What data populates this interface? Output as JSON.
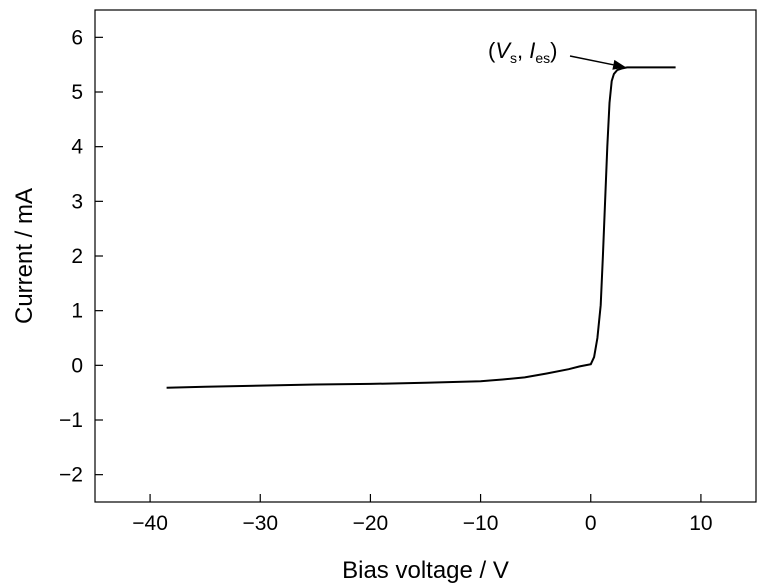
{
  "chart_data": {
    "type": "line",
    "xlabel": "Bias voltage / V",
    "ylabel": "Current / mA",
    "xlim": [
      -45,
      15
    ],
    "ylim": [
      -2.5,
      6.5
    ],
    "xticks": [
      -40,
      -30,
      -20,
      -10,
      0,
      10
    ],
    "yticks": [
      -2,
      -1,
      0,
      1,
      2,
      3,
      4,
      5,
      6
    ],
    "grid": false,
    "legend": "none",
    "series": [
      {
        "color": "#000000",
        "x": [
          -38.5,
          -35,
          -30,
          -25,
          -20,
          -15,
          -10,
          -8,
          -6,
          -4,
          -2,
          -1,
          0,
          0.3,
          0.6,
          0.9,
          1.1,
          1.3,
          1.5,
          1.7,
          1.9,
          2.1,
          2.4,
          2.8,
          3.3,
          4,
          5,
          6,
          7.7
        ],
        "y": [
          -0.41,
          -0.39,
          -0.37,
          -0.35,
          -0.34,
          -0.32,
          -0.29,
          -0.26,
          -0.22,
          -0.15,
          -0.07,
          -0.02,
          0.02,
          0.15,
          0.5,
          1.1,
          2.0,
          3.0,
          4.0,
          4.8,
          5.2,
          5.33,
          5.4,
          5.43,
          5.45,
          5.45,
          5.45,
          5.45,
          5.45
        ]
      }
    ],
    "annotations": [
      {
        "open": "(",
        "v": "V",
        "v_sub": "s",
        "sep": ", ",
        "i": "I",
        "i_sub": "es",
        "close": ")",
        "point": [
          3.3,
          5.45
        ]
      }
    ]
  }
}
